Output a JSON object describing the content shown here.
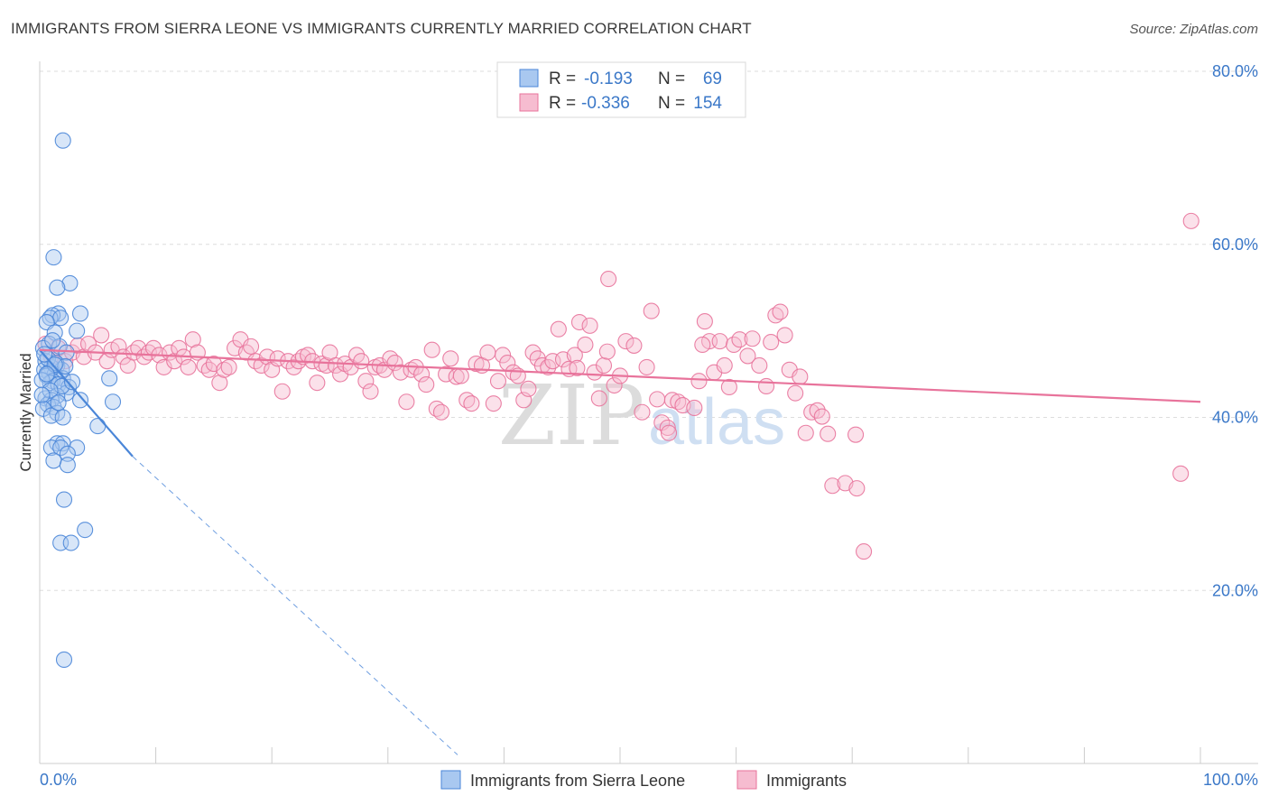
{
  "header": {
    "title": "IMMIGRANTS FROM SIERRA LEONE VS IMMIGRANTS CURRENTLY MARRIED CORRELATION CHART",
    "source": "Source: ZipAtlas.com"
  },
  "watermark": {
    "zip": "ZIP",
    "atlas": "atlas"
  },
  "legend": {
    "r_label": "R =",
    "n_label": "N =",
    "rows": [
      {
        "r": "-0.193",
        "n": "69"
      },
      {
        "r": "-0.336",
        "n": "154"
      }
    ]
  },
  "bottom_legend": [
    "Immigrants from Sierra Leone",
    "Immigrants"
  ],
  "colors": {
    "blue": "#4a86d8",
    "blue_fill": "#a9c8f0",
    "pink": "#e8739b",
    "pink_fill": "#f6bcd0",
    "tick_text": "#3b78c8",
    "grid": "#dddddd"
  },
  "chart_data": {
    "type": "scatter",
    "title": "IMMIGRANTS FROM SIERRA LEONE VS IMMIGRANTS CURRENTLY MARRIED CORRELATION CHART",
    "xlabel": "",
    "ylabel": "Currently Married",
    "xlim": [
      0,
      100
    ],
    "ylim": [
      0,
      80
    ],
    "x_tick_labels": [
      "0.0%",
      "100.0%"
    ],
    "y_ticks": [
      {
        "value": 80,
        "label": "80.0%"
      },
      {
        "value": 60,
        "label": "60.0%"
      },
      {
        "value": 40,
        "label": "40.0%"
      },
      {
        "value": 20,
        "label": "20.0%"
      }
    ],
    "series": [
      {
        "name": "Immigrants from Sierra Leone",
        "color": "blue",
        "R": -0.193,
        "N": 69,
        "trend": {
          "x0": 0,
          "y0": 47.8,
          "x1": 8,
          "y1": 35.5,
          "dash_to_x": 36,
          "dash_to_y": 1
        },
        "points": [
          [
            2,
            72
          ],
          [
            1.2,
            58.5
          ],
          [
            2.6,
            55.5
          ],
          [
            1.5,
            55
          ],
          [
            3.5,
            52
          ],
          [
            1.6,
            52
          ],
          [
            1.1,
            51.8
          ],
          [
            0.9,
            51.5
          ],
          [
            1.8,
            51.5
          ],
          [
            0.6,
            51
          ],
          [
            3.2,
            50
          ],
          [
            1.3,
            49.8
          ],
          [
            0.8,
            48.5
          ],
          [
            1.7,
            48.2
          ],
          [
            0.3,
            48
          ],
          [
            2.3,
            47.5
          ],
          [
            0.5,
            46.5
          ],
          [
            1.5,
            46
          ],
          [
            1,
            45.8
          ],
          [
            1.9,
            45.5
          ],
          [
            0.4,
            45.5
          ],
          [
            0.8,
            45.2
          ],
          [
            1.3,
            45
          ],
          [
            0.6,
            44.8
          ],
          [
            2,
            44.5
          ],
          [
            1.1,
            44.2
          ],
          [
            0.9,
            44
          ],
          [
            6,
            44.5
          ],
          [
            1.6,
            43.8
          ],
          [
            2.5,
            43.5
          ],
          [
            2.3,
            42.8
          ],
          [
            1.5,
            42.5
          ],
          [
            0.5,
            42.2
          ],
          [
            3.5,
            42
          ],
          [
            1,
            42
          ],
          [
            6.3,
            41.8
          ],
          [
            0.7,
            41.5
          ],
          [
            1.2,
            41.2
          ],
          [
            0.3,
            41
          ],
          [
            1.5,
            40.5
          ],
          [
            1,
            40.2
          ],
          [
            2,
            40
          ],
          [
            5,
            39
          ],
          [
            1.5,
            37
          ],
          [
            2,
            37
          ],
          [
            3.2,
            36.5
          ],
          [
            1,
            36.5
          ],
          [
            1.8,
            36.5
          ],
          [
            2.4,
            35.8
          ],
          [
            1.2,
            35
          ],
          [
            2.4,
            34.5
          ],
          [
            2.1,
            30.5
          ],
          [
            3.9,
            27
          ],
          [
            1.8,
            25.5
          ],
          [
            2.7,
            25.5
          ],
          [
            2.1,
            12
          ],
          [
            0.7,
            46.8
          ],
          [
            1.4,
            46.3
          ],
          [
            2.2,
            45.9
          ],
          [
            0.2,
            44.3
          ],
          [
            1.9,
            43.6
          ],
          [
            0.4,
            47.3
          ],
          [
            1.1,
            48.9
          ],
          [
            2.8,
            44.1
          ],
          [
            0.9,
            43.1
          ],
          [
            1.6,
            41.7
          ],
          [
            0.2,
            42.6
          ],
          [
            1.3,
            46.1
          ],
          [
            0.6,
            45.0
          ]
        ]
      },
      {
        "name": "Immigrants",
        "color": "pink",
        "R": -0.336,
        "N": 154,
        "trend": {
          "x0": 0,
          "y0": 47.8,
          "x1": 100,
          "y1": 41.8
        },
        "points": [
          [
            0.5,
            48.5
          ],
          [
            1,
            47
          ],
          [
            1.6,
            48
          ],
          [
            2.2,
            46.5
          ],
          [
            2.8,
            47.5
          ],
          [
            3.3,
            48.3
          ],
          [
            3.8,
            47
          ],
          [
            4.2,
            48.5
          ],
          [
            4.8,
            47.5
          ],
          [
            5.3,
            49.5
          ],
          [
            5.8,
            46.5
          ],
          [
            6.2,
            47.8
          ],
          [
            6.8,
            48.2
          ],
          [
            7.2,
            47
          ],
          [
            7.6,
            46
          ],
          [
            8.1,
            47.5
          ],
          [
            8.5,
            48
          ],
          [
            9,
            47
          ],
          [
            9.4,
            47.5
          ],
          [
            9.8,
            48
          ],
          [
            10.3,
            47.2
          ],
          [
            10.7,
            45.8
          ],
          [
            11.2,
            47.5
          ],
          [
            11.6,
            46.5
          ],
          [
            12,
            48
          ],
          [
            12.4,
            47
          ],
          [
            12.8,
            45.8
          ],
          [
            13.2,
            49
          ],
          [
            13.6,
            47.5
          ],
          [
            14.2,
            46
          ],
          [
            14.6,
            45.5
          ],
          [
            15,
            46.2
          ],
          [
            15.5,
            44
          ],
          [
            15.9,
            45.5
          ],
          [
            16.3,
            45.8
          ],
          [
            16.8,
            48
          ],
          [
            17.3,
            49
          ],
          [
            17.8,
            47.5
          ],
          [
            18.2,
            48.2
          ],
          [
            18.6,
            46.5
          ],
          [
            19.1,
            46
          ],
          [
            19.6,
            47
          ],
          [
            20,
            45.5
          ],
          [
            20.5,
            46.8
          ],
          [
            20.9,
            43
          ],
          [
            21.4,
            46.5
          ],
          [
            21.9,
            45.8
          ],
          [
            22.3,
            46.5
          ],
          [
            22.7,
            47
          ],
          [
            23.1,
            47.2
          ],
          [
            23.5,
            46.5
          ],
          [
            23.9,
            44
          ],
          [
            24.3,
            46.2
          ],
          [
            24.7,
            46
          ],
          [
            25,
            47.5
          ],
          [
            25.5,
            46
          ],
          [
            25.9,
            45
          ],
          [
            26.3,
            46.2
          ],
          [
            26.8,
            45.8
          ],
          [
            27.3,
            47.2
          ],
          [
            27.7,
            46.5
          ],
          [
            28.1,
            44.2
          ],
          [
            28.5,
            43
          ],
          [
            28.9,
            45.8
          ],
          [
            29.3,
            46
          ],
          [
            29.7,
            45.5
          ],
          [
            30.2,
            46.8
          ],
          [
            30.6,
            46.3
          ],
          [
            31.1,
            45.2
          ],
          [
            31.6,
            41.8
          ],
          [
            32,
            45.5
          ],
          [
            32.4,
            45.8
          ],
          [
            32.9,
            45
          ],
          [
            33.3,
            43.8
          ],
          [
            33.8,
            47.8
          ],
          [
            34.2,
            41
          ],
          [
            34.6,
            40.6
          ],
          [
            35,
            45
          ],
          [
            35.4,
            46.8
          ],
          [
            35.9,
            44.7
          ],
          [
            36.3,
            44.8
          ],
          [
            36.8,
            42
          ],
          [
            37.2,
            41.6
          ],
          [
            37.6,
            46.2
          ],
          [
            38.1,
            46
          ],
          [
            38.6,
            47.5
          ],
          [
            39.1,
            41.6
          ],
          [
            39.5,
            44.2
          ],
          [
            39.9,
            47.2
          ],
          [
            40.3,
            46.3
          ],
          [
            40.8,
            45.2
          ],
          [
            41.2,
            44.8
          ],
          [
            41.7,
            42
          ],
          [
            42.1,
            43.3
          ],
          [
            42.5,
            47.5
          ],
          [
            42.9,
            46.8
          ],
          [
            43.3,
            46
          ],
          [
            43.8,
            45.8
          ],
          [
            44.2,
            46.5
          ],
          [
            44.7,
            50.2
          ],
          [
            45.1,
            46.7
          ],
          [
            45.6,
            45.6
          ],
          [
            46.1,
            47.2
          ],
          [
            46.5,
            51
          ],
          [
            47,
            48.4
          ],
          [
            47.4,
            50.6
          ],
          [
            47.8,
            45.2
          ],
          [
            48.2,
            42.2
          ],
          [
            48.6,
            46
          ],
          [
            49,
            56
          ],
          [
            49.5,
            43.7
          ],
          [
            50,
            44.8
          ],
          [
            50.5,
            48.8
          ],
          [
            51.2,
            48.3
          ],
          [
            51.9,
            40.6
          ],
          [
            52.3,
            45.8
          ],
          [
            52.7,
            52.3
          ],
          [
            53.2,
            42.1
          ],
          [
            53.6,
            39.4
          ],
          [
            54.1,
            38.8
          ],
          [
            54.5,
            42
          ],
          [
            55,
            41.8
          ],
          [
            55.4,
            41.4
          ],
          [
            56.4,
            41.1
          ],
          [
            56.8,
            44.2
          ],
          [
            57.3,
            51.1
          ],
          [
            57.7,
            48.8
          ],
          [
            58.1,
            45.2
          ],
          [
            58.6,
            48.8
          ],
          [
            59,
            46
          ],
          [
            59.4,
            43.5
          ],
          [
            59.8,
            48.4
          ],
          [
            60.3,
            49
          ],
          [
            61,
            47.1
          ],
          [
            61.4,
            49.1
          ],
          [
            62,
            46
          ],
          [
            62.6,
            43.6
          ],
          [
            63,
            48.7
          ],
          [
            63.4,
            51.8
          ],
          [
            63.8,
            52.2
          ],
          [
            64.2,
            49.5
          ],
          [
            64.6,
            45.5
          ],
          [
            65.1,
            42.8
          ],
          [
            65.5,
            44.7
          ],
          [
            66,
            38.2
          ],
          [
            66.5,
            40.6
          ],
          [
            67,
            40.8
          ],
          [
            67.4,
            40.1
          ],
          [
            67.9,
            38.1
          ],
          [
            68.3,
            32.1
          ],
          [
            69.4,
            32.4
          ],
          [
            70.4,
            31.8
          ],
          [
            70.3,
            38
          ],
          [
            71,
            24.5
          ],
          [
            98.3,
            33.5
          ],
          [
            99.2,
            62.7
          ],
          [
            54.2,
            38.2
          ],
          [
            57.1,
            48.4
          ],
          [
            48.9,
            47.6
          ],
          [
            46.3,
            45.7
          ]
        ]
      }
    ]
  }
}
